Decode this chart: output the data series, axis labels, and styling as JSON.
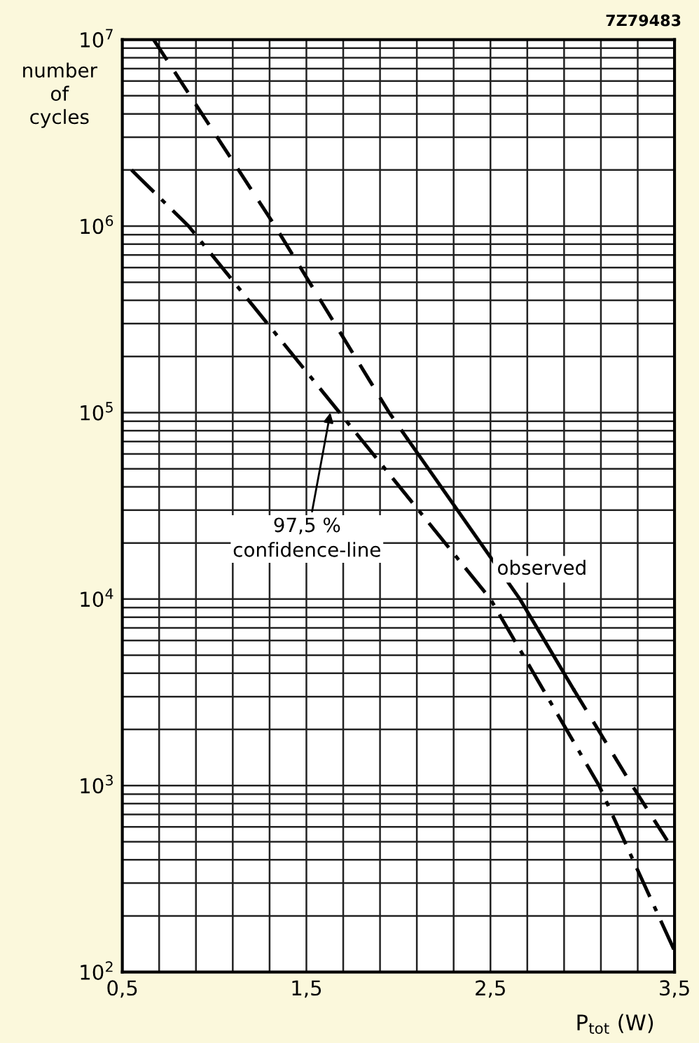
{
  "chart_data": {
    "type": "line",
    "xlabel": "P$_{tot}$ (W)",
    "ylabel": "number\nof\ncycles",
    "xlim": [
      0.5,
      3.5
    ],
    "ylim": [
      100,
      10000000
    ],
    "log": "y",
    "grid": true,
    "marker": "none",
    "xticks": [
      {
        "value": 0.5,
        "label": "0,5"
      },
      {
        "value": 0.7,
        "label": null
      },
      {
        "value": 0.9,
        "label": null
      },
      {
        "value": 1.1,
        "label": null
      },
      {
        "value": 1.3,
        "label": null
      },
      {
        "value": 1.5,
        "label": "1,5"
      },
      {
        "value": 1.7,
        "label": null
      },
      {
        "value": 1.9,
        "label": null
      },
      {
        "value": 2.1,
        "label": null
      },
      {
        "value": 2.3,
        "label": null
      },
      {
        "value": 2.5,
        "label": "2,5"
      },
      {
        "value": 2.7,
        "label": null
      },
      {
        "value": 2.9,
        "label": null
      },
      {
        "value": 3.1,
        "label": null
      },
      {
        "value": 3.3,
        "label": null
      },
      {
        "value": 3.5,
        "label": "3,5"
      }
    ],
    "yticks": [
      {
        "value": 100,
        "label": "10$^{2}$"
      },
      {
        "value": 200,
        "label": null
      },
      {
        "value": 300,
        "label": null
      },
      {
        "value": 400,
        "label": null
      },
      {
        "value": 500,
        "label": null
      },
      {
        "value": 600,
        "label": null
      },
      {
        "value": 700,
        "label": null
      },
      {
        "value": 800,
        "label": null
      },
      {
        "value": 900,
        "label": null
      },
      {
        "value": 1000,
        "label": "10$^{3}$"
      },
      {
        "value": 2000,
        "label": null
      },
      {
        "value": 3000,
        "label": null
      },
      {
        "value": 4000,
        "label": null
      },
      {
        "value": 5000,
        "label": null
      },
      {
        "value": 6000,
        "label": null
      },
      {
        "value": 7000,
        "label": null
      },
      {
        "value": 8000,
        "label": null
      },
      {
        "value": 9000,
        "label": null
      },
      {
        "value": 10000,
        "label": "10$^{4}$"
      },
      {
        "value": 20000,
        "label": null
      },
      {
        "value": 30000,
        "label": null
      },
      {
        "value": 40000,
        "label": null
      },
      {
        "value": 50000,
        "label": null
      },
      {
        "value": 60000,
        "label": null
      },
      {
        "value": 70000,
        "label": null
      },
      {
        "value": 80000,
        "label": null
      },
      {
        "value": 90000,
        "label": null
      },
      {
        "value": 100000,
        "label": "10$^{5}$"
      },
      {
        "value": 200000,
        "label": null
      },
      {
        "value": 300000,
        "label": null
      },
      {
        "value": 400000,
        "label": null
      },
      {
        "value": 500000,
        "label": null
      },
      {
        "value": 600000,
        "label": null
      },
      {
        "value": 700000,
        "label": null
      },
      {
        "value": 800000,
        "label": null
      },
      {
        "value": 900000,
        "label": null
      },
      {
        "value": 1000000,
        "label": "10$^{6}$"
      },
      {
        "value": 2000000,
        "label": null
      },
      {
        "value": 3000000,
        "label": null
      },
      {
        "value": 4000000,
        "label": null
      },
      {
        "value": 5000000,
        "label": null
      },
      {
        "value": 6000000,
        "label": null
      },
      {
        "value": 7000000,
        "label": null
      },
      {
        "value": 8000000,
        "label": null
      },
      {
        "value": 9000000,
        "label": null
      },
      {
        "value": 10000000,
        "label": "10$^{7}$"
      }
    ],
    "series": [
      {
        "color": "#000000",
        "line_style": "dashed",
        "x": [
          0.67,
          1.33,
          1.95,
          2.05
        ],
        "values": [
          10000000,
          1000000,
          100000,
          72000
        ]
      },
      {
        "color": "#000000",
        "line_style": "solid",
        "x": [
          2.05,
          2.66,
          2.95
        ],
        "values": [
          72000,
          10000,
          3300
        ]
      },
      {
        "color": "#000000",
        "line_style": "dashed",
        "x": [
          2.95,
          3.27,
          3.5
        ],
        "values": [
          3300,
          1000,
          440
        ]
      },
      {
        "color": "#000000",
        "line_style": "dashdot",
        "x": [
          0.55,
          0.86,
          1.68,
          2.5,
          3.09,
          3.5
        ],
        "values": [
          2000000,
          1000000,
          100000,
          10000,
          1000,
          130
        ]
      }
    ],
    "annotations": [
      {
        "text": "97,5 %\nconfidence-line",
        "x": 1.63,
        "y": 100000
      },
      "observed",
      "7Z79483"
    ]
  }
}
